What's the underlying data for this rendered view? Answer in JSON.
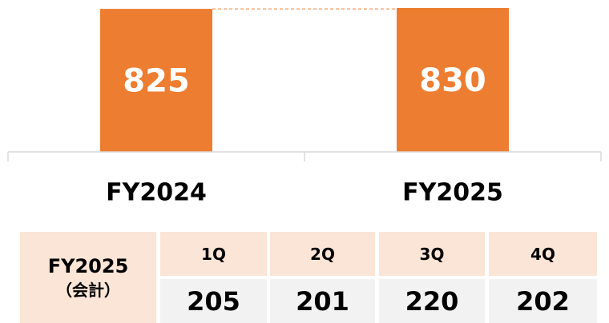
{
  "chart_data": {
    "type": "bar",
    "categories": [
      "FY2024",
      "FY2025"
    ],
    "values": [
      825,
      830
    ],
    "color": "#ed7d31",
    "ylim": [
      0,
      830
    ]
  },
  "table": {
    "row_header": "FY2025",
    "row_subheader": "（会計）",
    "columns": [
      "1Q",
      "2Q",
      "3Q",
      "4Q"
    ],
    "values": [
      "205",
      "201",
      "220",
      "202"
    ]
  }
}
